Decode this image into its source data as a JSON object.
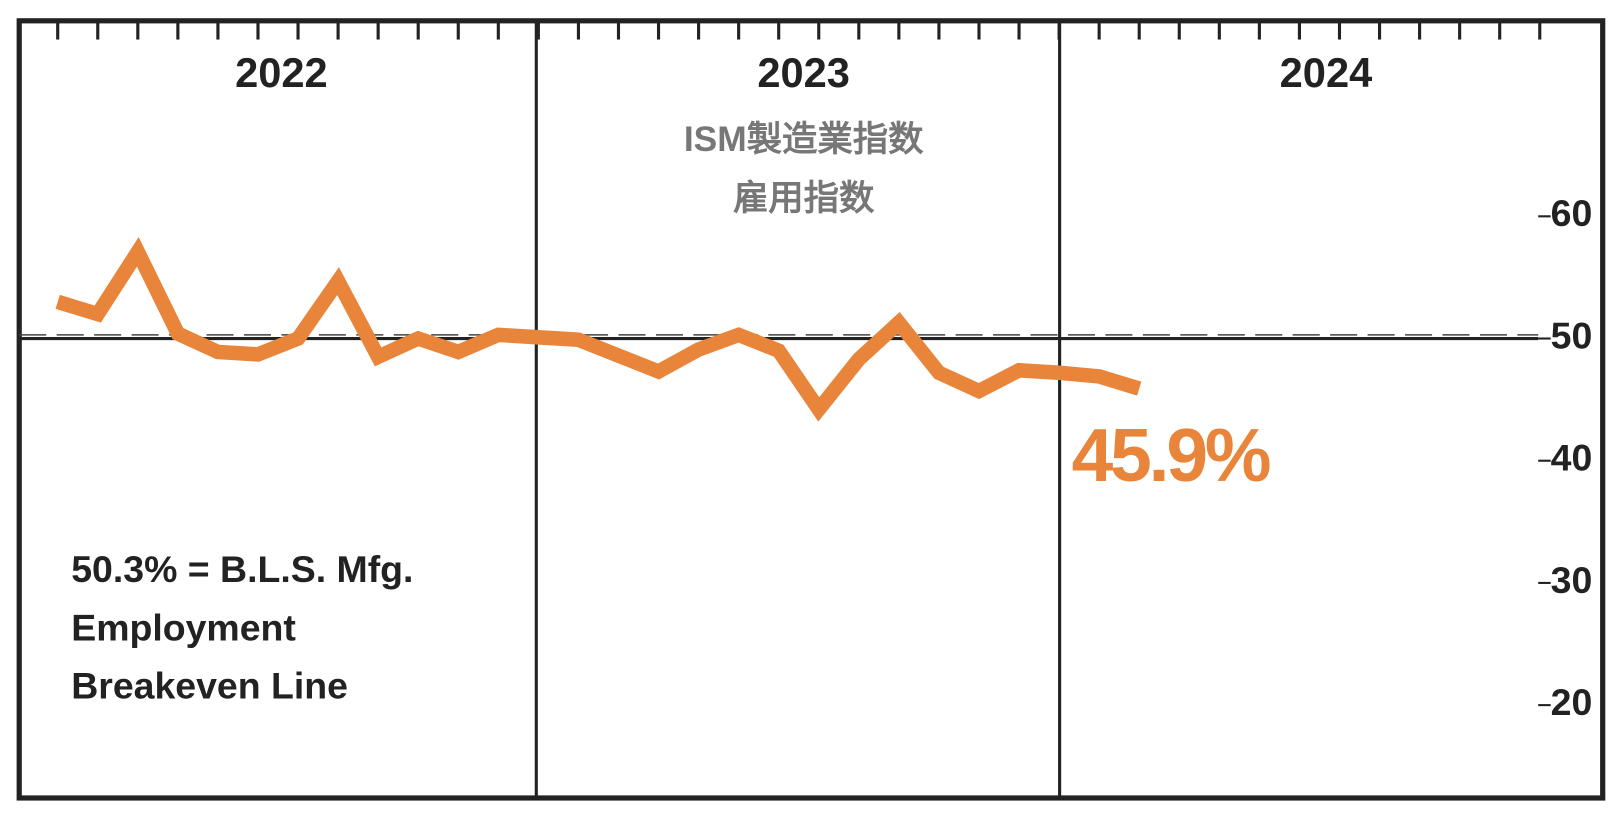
{
  "chart_data": {
    "type": "line",
    "title": "ISM製造業指数",
    "subtitle": "雇用指数",
    "year_labels": [
      "2022",
      "2023",
      "2024"
    ],
    "x": [
      "2022-01",
      "2022-02",
      "2022-03",
      "2022-04",
      "2022-05",
      "2022-06",
      "2022-07",
      "2022-08",
      "2022-09",
      "2022-10",
      "2022-11",
      "2022-12",
      "2023-01",
      "2023-02",
      "2023-03",
      "2023-04",
      "2023-05",
      "2023-06",
      "2023-07",
      "2023-08",
      "2023-09",
      "2023-10",
      "2023-11",
      "2023-12",
      "2024-01",
      "2024-02",
      "2024-03",
      "2024-04"
    ],
    "series": [
      {
        "color": "#e8853a",
        "values": [
          53.0,
          52.0,
          57.1,
          50.4,
          48.9,
          48.7,
          50.0,
          54.7,
          48.5,
          50.0,
          48.9,
          50.3,
          50.1,
          49.9,
          48.6,
          47.3,
          49.1,
          50.3,
          49.0,
          44.2,
          48.3,
          51.3,
          47.2,
          45.7,
          47.4,
          47.2,
          46.9,
          45.9
        ],
        "value_labels": [
          null,
          null,
          null,
          null,
          null,
          null,
          null,
          null,
          null,
          null,
          null,
          null,
          null,
          null,
          null,
          null,
          null,
          null,
          null,
          null,
          null,
          null,
          null,
          null,
          null,
          null,
          null,
          "45.9%"
        ]
      }
    ],
    "ylim": [
      12.4,
      76
    ],
    "yticks": [
      20,
      30,
      40,
      50,
      60
    ],
    "breakeven": 50.3,
    "annotation": [
      "50.3% = B.L.S. Mfg.",
      "Employment",
      "Breakeven Line"
    ]
  }
}
